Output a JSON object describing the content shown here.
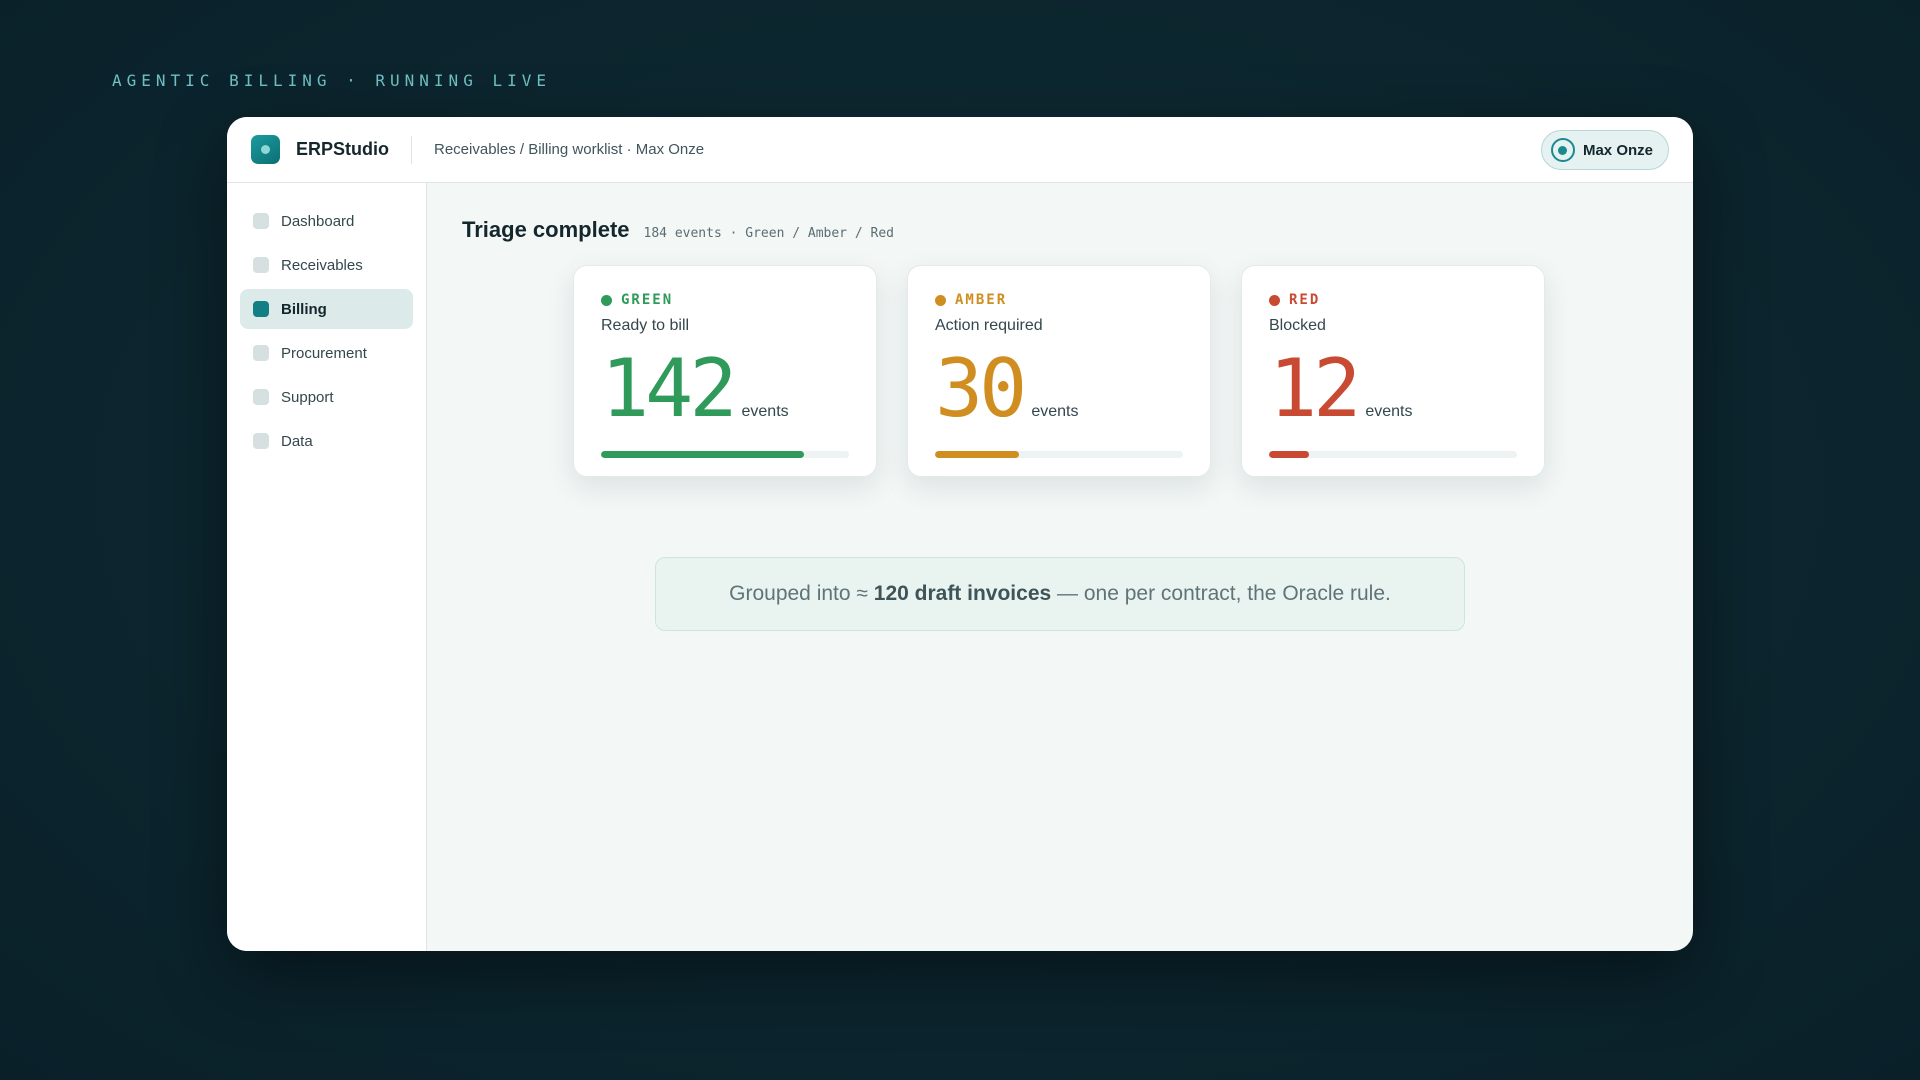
{
  "eyebrow": "AGENTIC BILLING · RUNNING LIVE",
  "app": {
    "brand": "ERPStudio",
    "breadcrumb": "Receivables / Billing worklist · Max Onze"
  },
  "user": {
    "name": "Max Onze"
  },
  "sidebar": {
    "items": [
      {
        "label": "Dashboard",
        "active": false
      },
      {
        "label": "Receivables",
        "active": false
      },
      {
        "label": "Billing",
        "active": true
      },
      {
        "label": "Procurement",
        "active": false
      },
      {
        "label": "Support",
        "active": false
      },
      {
        "label": "Data",
        "active": false
      }
    ]
  },
  "main": {
    "title": "Triage complete",
    "meta": "184 events · Green / Amber / Red",
    "cards": [
      {
        "tag": "GREEN",
        "subtitle": "Ready to bill",
        "value": "142",
        "unit": "events",
        "fill_fraction": 0.82,
        "color": "#2f9a5a"
      },
      {
        "tag": "AMBER",
        "subtitle": "Action required",
        "value": "30",
        "unit": "events",
        "fill_fraction": 0.34,
        "color": "#cf8e1f"
      },
      {
        "tag": "RED",
        "subtitle": "Blocked",
        "value": "12",
        "unit": "events",
        "fill_fraction": 0.16,
        "color": "#c94a32"
      }
    ],
    "summary": {
      "prefix": "Grouped into ≈",
      "bold": "120 draft invoices",
      "suffix": "— one per contract, the Oracle rule."
    }
  }
}
